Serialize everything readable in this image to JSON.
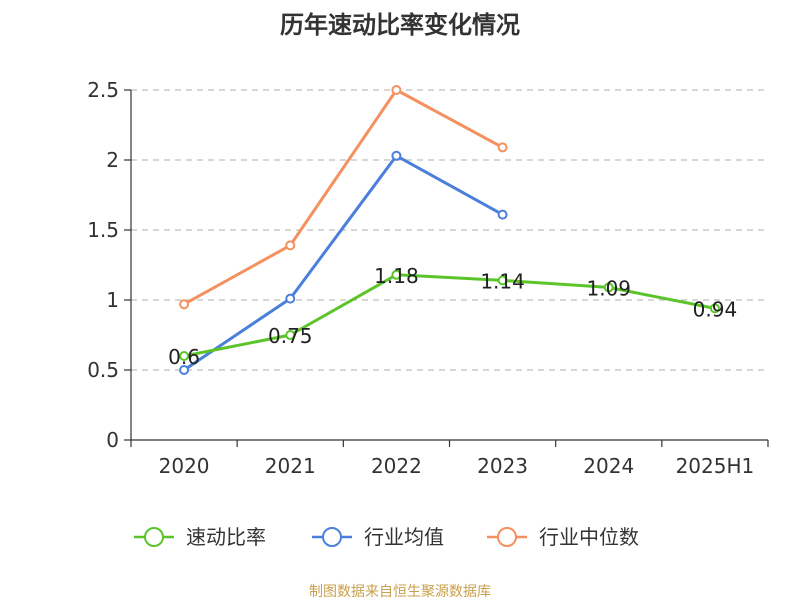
{
  "chart_data": {
    "type": "line",
    "title": "历年速动比率变化情况",
    "categories": [
      "2020",
      "2021",
      "2022",
      "2023",
      "2024",
      "2025H1"
    ],
    "ylim": [
      0,
      2.5
    ],
    "yticks": [
      "0",
      "0.5",
      "1",
      "1.5",
      "2",
      "2.5"
    ],
    "grid": true,
    "legend_position": "bottom",
    "series": [
      {
        "name": "速动比率",
        "color": "#5cc42b",
        "values": [
          0.6,
          0.75,
          1.18,
          1.14,
          1.09,
          0.94
        ],
        "labels": [
          "0.6",
          "0.75",
          "1.18",
          "1.14",
          "1.09",
          "0.94"
        ],
        "show_labels": true
      },
      {
        "name": "行业均值",
        "color": "#4a7fdc",
        "values": [
          0.5,
          1.01,
          2.03,
          1.61,
          null,
          null
        ],
        "show_labels": false
      },
      {
        "name": "行业中位数",
        "color": "#f5905f",
        "values": [
          0.97,
          1.39,
          2.5,
          2.09,
          null,
          null
        ],
        "show_labels": false
      }
    ]
  },
  "source": "制图数据来自恒生聚源数据库"
}
